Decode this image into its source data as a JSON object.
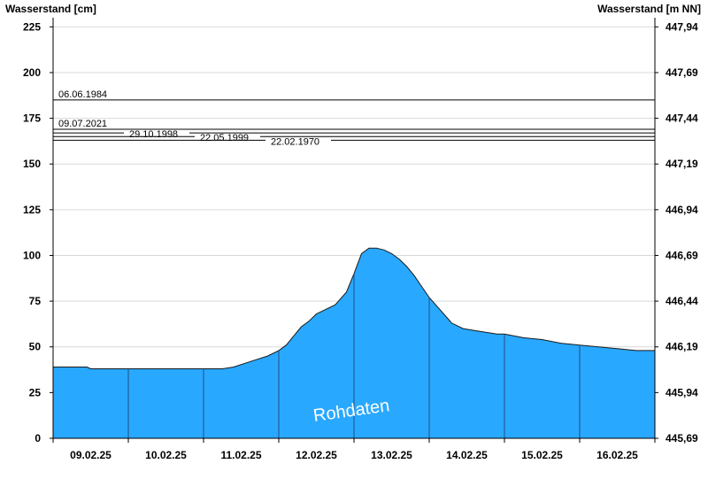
{
  "chart_data": {
    "type": "area",
    "left_axis_title": "Wasserstand [cm]",
    "right_axis_title": "Wasserstand [m NN]",
    "ylim": [
      0,
      230
    ],
    "left_ticks": [
      "0",
      "25",
      "50",
      "75",
      "100",
      "125",
      "150",
      "175",
      "200",
      "225"
    ],
    "right_ticks": [
      "445,69",
      "445,94",
      "446,19",
      "446,44",
      "446,69",
      "446,94",
      "447,19",
      "447,44",
      "447,69",
      "447,94"
    ],
    "x_ticks": [
      "09.02.25",
      "10.02.25",
      "11.02.25",
      "12.02.25",
      "13.02.25",
      "14.02.25",
      "15.02.25",
      "16.02.25"
    ],
    "xlim_days": [
      0,
      8
    ],
    "grid": true,
    "fill_color": "#29a8ff",
    "watermark": "Rohdaten",
    "series": [
      {
        "x_days": [
          0,
          0.45,
          0.5,
          1.0,
          1.5,
          2.0,
          2.25,
          2.4,
          2.55,
          2.7,
          2.85,
          3.0,
          3.1,
          3.2,
          3.3,
          3.4,
          3.5,
          3.6,
          3.75,
          3.9,
          4.0,
          4.1,
          4.2,
          4.3,
          4.4,
          4.5,
          4.6,
          4.7,
          4.8,
          4.9,
          5.0,
          5.15,
          5.3,
          5.45,
          5.6,
          5.75,
          5.9,
          6.0,
          6.25,
          6.5,
          6.75,
          7.0,
          7.25,
          7.5,
          7.75,
          8.0
        ],
        "y": [
          39,
          39,
          38,
          38,
          38,
          38,
          38,
          39,
          41,
          43,
          45,
          48,
          51,
          56,
          61,
          64,
          68,
          70,
          73,
          80,
          90,
          101,
          104,
          104,
          103,
          101,
          98,
          94,
          89,
          83,
          77,
          70,
          63,
          60,
          59,
          58,
          57,
          57,
          55,
          54,
          52,
          51,
          50,
          49,
          48,
          48
        ]
      }
    ],
    "historic_levels": [
      {
        "label": "06.06.1984",
        "value": 185
      },
      {
        "label": "09.07.2021",
        "value": 169
      },
      {
        "label": "29.10.1998",
        "value": 167
      },
      {
        "label": "22.05.1999",
        "value": 165
      },
      {
        "label": "22.02.1970",
        "value": 163
      }
    ]
  }
}
